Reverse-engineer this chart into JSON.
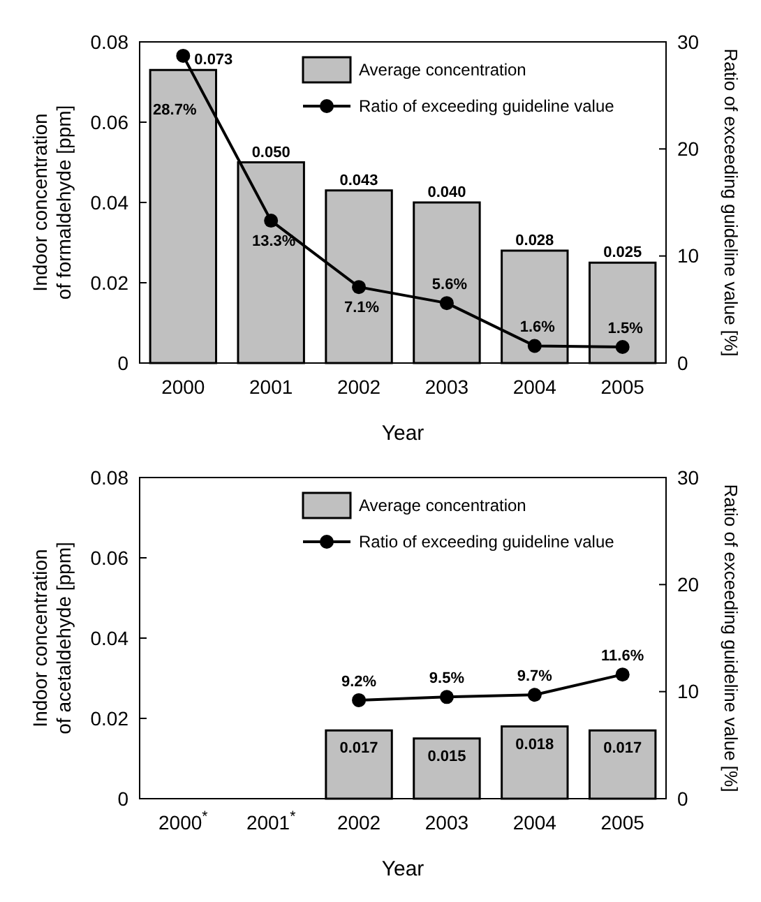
{
  "chart_data": [
    {
      "type": "bar",
      "categories": [
        "2000",
        "2001",
        "2002",
        "2003",
        "2004",
        "2005"
      ],
      "xlabel": "Year",
      "ylabel": "Indoor concentration\nof formaldehyde [ppm]",
      "y2label": "Ratio of exceeding guideline value [%]",
      "ylim": [
        0,
        0.08
      ],
      "yticks": [
        0,
        0.02,
        0.04,
        0.06,
        0.08
      ],
      "y2lim": [
        0,
        30
      ],
      "y2ticks": [
        0,
        10,
        20,
        30
      ],
      "legend": "top right",
      "grid": false,
      "series": [
        {
          "name": "Average concentration",
          "color": "#c0c0c0",
          "values": [
            0.073,
            0.05,
            0.043,
            0.04,
            0.028,
            0.025
          ],
          "value_labels": [
            "0.073",
            "0.050",
            "0.043",
            "0.040",
            "0.028",
            "0.025"
          ]
        },
        {
          "name": "Ratio of exceeding guideline value",
          "type": "line",
          "axis": "y2",
          "color": "#000000",
          "marker": "circle",
          "values": [
            28.7,
            13.3,
            7.1,
            5.6,
            1.6,
            1.5
          ],
          "value_labels": [
            "28.7%",
            "13.3%",
            "7.1%",
            "5.6%",
            "1.6%",
            "1.5%"
          ]
        }
      ]
    },
    {
      "type": "bar",
      "categories": [
        "2000$^{*}$",
        "2001$^{*}$",
        "2002",
        "2003",
        "2004",
        "2005"
      ],
      "xlabel": "Year",
      "ylabel": "Indoor concentration\nof acetaldehyde [ppm]",
      "y2label": "Ratio of exceeding guideline value [%]",
      "ylim": [
        0,
        0.08
      ],
      "yticks": [
        0,
        0.02,
        0.04,
        0.06,
        0.08
      ],
      "y2lim": [
        0,
        30
      ],
      "y2ticks": [
        0,
        10,
        20,
        30
      ],
      "legend": "top right",
      "grid": false,
      "series": [
        {
          "name": "Average concentration",
          "color": "#c0c0c0",
          "values": [
            null,
            null,
            0.017,
            0.015,
            0.018,
            0.017
          ],
          "value_labels": [
            null,
            null,
            "0.017",
            "0.015",
            "0.018",
            "0.017"
          ]
        },
        {
          "name": "Ratio of exceeding guideline value",
          "type": "line",
          "axis": "y2",
          "color": "#000000",
          "marker": "circle",
          "values": [
            null,
            null,
            9.2,
            9.5,
            9.7,
            11.6
          ],
          "value_labels": [
            null,
            null,
            "9.2%",
            "9.5%",
            "9.7%",
            "11.6%"
          ]
        }
      ]
    }
  ]
}
